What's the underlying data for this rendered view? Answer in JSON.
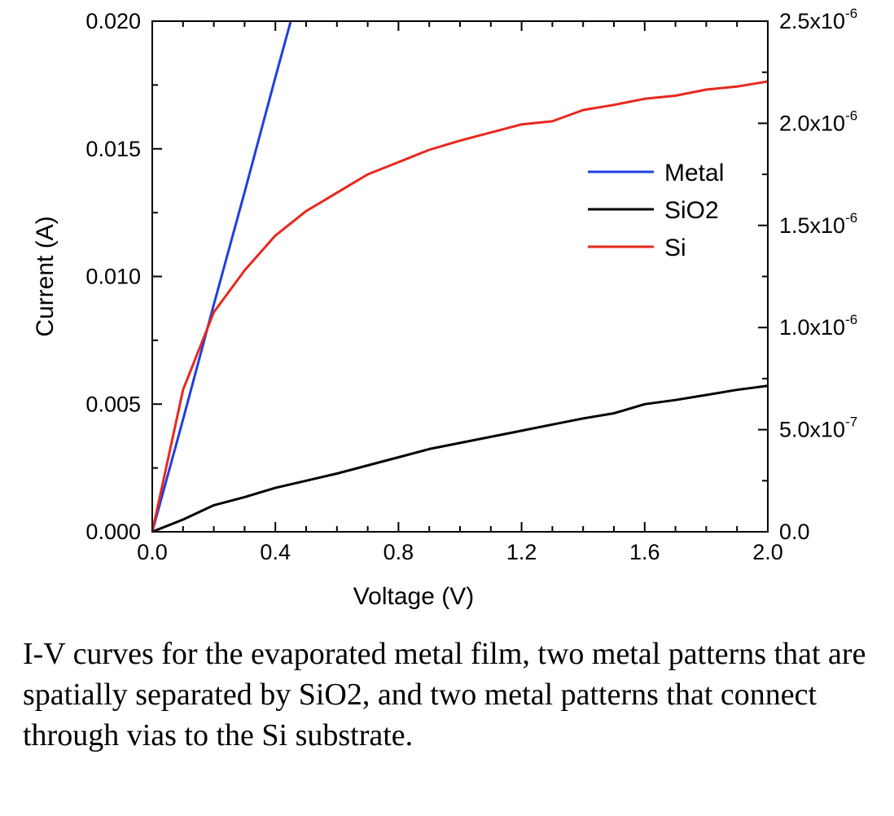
{
  "chart_data": {
    "type": "line",
    "x_axis": {
      "label": "Voltage (V)",
      "range": [
        0,
        2.0
      ],
      "ticks": [
        "0.0",
        "0.4",
        "0.8",
        "1.2",
        "1.6",
        "2.0"
      ],
      "tick_values": [
        0,
        0.4,
        0.8,
        1.2,
        1.6,
        2.0
      ]
    },
    "y_axis_left": {
      "label": "Current (A)",
      "range": [
        0,
        0.02
      ],
      "ticks": [
        "0.000",
        "0.005",
        "0.010",
        "0.015",
        "0.020"
      ],
      "tick_values": [
        0,
        0.005,
        0.01,
        0.015,
        0.02
      ]
    },
    "y_axis_right": {
      "range": [
        0,
        2.5e-06
      ],
      "tick_values": [
        0,
        5e-07,
        1e-06,
        1.5e-06,
        2e-06,
        2.5e-06
      ],
      "ticks": [
        {
          "base": "0.0",
          "exp": ""
        },
        {
          "base": "5.0x10",
          "exp": "-7"
        },
        {
          "base": "1.0x10",
          "exp": "-6"
        },
        {
          "base": "1.5x10",
          "exp": "-6"
        },
        {
          "base": "2.0x10",
          "exp": "-6"
        },
        {
          "base": "2.5x10",
          "exp": "-6"
        }
      ]
    },
    "series": [
      {
        "name": "Metal",
        "color": "#1f3fe0",
        "axis": "left",
        "x": [
          0,
          0.1,
          0.2,
          0.3,
          0.4,
          0.45
        ],
        "y": [
          0,
          0.0044,
          0.0089,
          0.0133,
          0.0178,
          0.02
        ]
      },
      {
        "name": "SiO2",
        "color": "#000000",
        "axis": "right",
        "x": [
          0,
          0.1,
          0.2,
          0.3,
          0.4,
          0.5,
          0.6,
          0.7,
          0.8,
          0.9,
          1.0,
          1.1,
          1.2,
          1.3,
          1.4,
          1.5,
          1.6,
          1.7,
          1.8,
          1.9,
          2.0
        ],
        "y": [
          0,
          6e-08,
          1.3e-07,
          1.7e-07,
          2.15e-07,
          2.5e-07,
          2.85e-07,
          3.25e-07,
          3.65e-07,
          4.05e-07,
          4.35e-07,
          4.65e-07,
          4.95e-07,
          5.25e-07,
          5.55e-07,
          5.8e-07,
          6.25e-07,
          6.45e-07,
          6.7e-07,
          6.95e-07,
          7.15e-07
        ]
      },
      {
        "name": "Si",
        "color": "#e8281e",
        "axis": "right",
        "x": [
          0,
          0.1,
          0.2,
          0.3,
          0.4,
          0.5,
          0.6,
          0.7,
          0.8,
          0.9,
          1.0,
          1.1,
          1.2,
          1.3,
          1.4,
          1.5,
          1.6,
          1.7,
          1.8,
          1.9,
          2.0
        ],
        "y": [
          0,
          6.95e-07,
          1.075e-06,
          1.28e-06,
          1.45e-06,
          1.57e-06,
          1.66e-06,
          1.75e-06,
          1.81e-06,
          1.87e-06,
          1.915e-06,
          1.955e-06,
          1.995e-06,
          2.01e-06,
          2.065e-06,
          2.09e-06,
          2.12e-06,
          2.135e-06,
          2.165e-06,
          2.18e-06,
          2.205e-06
        ]
      }
    ],
    "legend": {
      "placement": "top-right",
      "entries": [
        "Metal",
        "SiO2",
        "Si"
      ]
    },
    "grid": false
  },
  "caption": "I-V curves for the evaporated metal film, two metal patterns that are spatially separated by SiO2, and two metal patterns that connect through vias to the Si substrate."
}
